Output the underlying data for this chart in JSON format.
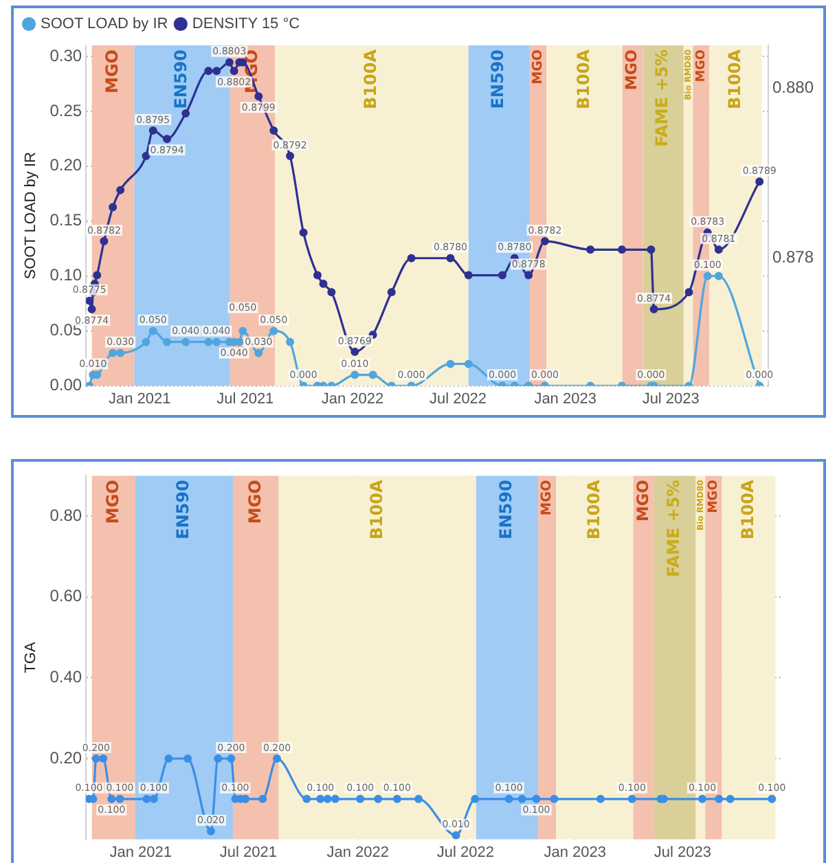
{
  "chart_data": [
    {
      "type": "line",
      "ylabel": "SOOT LOAD by IR",
      "x": [
        "2020-10-07",
        "2020-10-11",
        "2020-10-13",
        "2020-10-16",
        "2020-10-20",
        "2020-11-01",
        "2020-11-16",
        "2020-11-29",
        "2021-01-12",
        "2021-01-24",
        "2021-02-17",
        "2021-03-21",
        "2021-04-29",
        "2021-05-13",
        "2021-06-04",
        "2021-06-12",
        "2021-06-21",
        "2021-06-27",
        "2021-07-24",
        "2021-08-19",
        "2021-09-16",
        "2021-10-09",
        "2021-11-02",
        "2021-11-12",
        "2021-11-26",
        "2022-01-05",
        "2022-02-05",
        "2022-03-09",
        "2022-04-12",
        "2022-06-18",
        "2022-07-19",
        "2022-09-15",
        "2022-10-06",
        "2022-10-30",
        "2022-11-27",
        "2023-02-13",
        "2023-04-08",
        "2023-05-28",
        "2023-06-02",
        "2023-08-01",
        "2023-09-02",
        "2023-09-21",
        "2023-11-30"
      ],
      "xlim": [
        "2020-10-01",
        "2023-12-15"
      ],
      "xticks": [
        {
          "value": "2021-01-01",
          "label": "Jan 2021"
        },
        {
          "value": "2021-07-01",
          "label": "Jul 2021"
        },
        {
          "value": "2022-01-01",
          "label": "Jan 2022"
        },
        {
          "value": "2022-07-01",
          "label": "Jul 2022"
        },
        {
          "value": "2023-01-01",
          "label": "Jan 2023"
        },
        {
          "value": "2023-07-01",
          "label": "Jul 2023"
        }
      ],
      "ylim": [
        0,
        0.31
      ],
      "yticks": [
        {
          "value": 0,
          "label": "0.00"
        },
        {
          "value": 0.05,
          "label": "0.05"
        },
        {
          "value": 0.1,
          "label": "0.10"
        },
        {
          "value": 0.15,
          "label": "0.15"
        },
        {
          "value": 0.2,
          "label": "0.20"
        },
        {
          "value": 0.25,
          "label": "0.25"
        },
        {
          "value": 0.3,
          "label": "0.30"
        }
      ],
      "y2lim": [
        0.8765,
        0.8805
      ],
      "y2ticks": [
        {
          "value": 0.878,
          "label": "0.878"
        },
        {
          "value": 0.88,
          "label": "0.880"
        }
      ],
      "series": [
        {
          "name": "SOOT LOAD by IR",
          "color": "#4fa6de",
          "x": [
            "2020-10-07",
            "2020-10-13",
            "2020-10-20",
            "2020-11-01",
            "2020-11-16",
            "2020-11-29",
            "2021-01-12",
            "2021-01-24",
            "2021-02-17",
            "2021-03-21",
            "2021-04-29",
            "2021-05-13",
            "2021-06-04",
            "2021-06-12",
            "2021-06-21",
            "2021-06-27",
            "2021-07-24",
            "2021-08-19",
            "2021-09-16",
            "2021-10-09",
            "2021-11-02",
            "2021-11-12",
            "2021-11-26",
            "2022-01-05",
            "2022-02-05",
            "2022-03-09",
            "2022-04-12",
            "2022-06-18",
            "2022-07-19",
            "2022-09-15",
            "2022-10-06",
            "2022-10-30",
            "2022-11-27",
            "2023-02-13",
            "2023-04-08",
            "2023-05-28",
            "2023-06-02",
            "2023-08-01",
            "2023-09-02",
            "2023-09-21",
            "2023-11-30"
          ],
          "values": [
            0,
            0.01,
            0.01,
            0.02,
            0.03,
            0.03,
            0.04,
            0.05,
            0.04,
            0.04,
            0.04,
            0.04,
            0.04,
            0.04,
            0.04,
            0.05,
            0.03,
            0.05,
            0.04,
            0,
            0,
            0,
            0,
            0.01,
            0.01,
            0,
            0,
            0.02,
            0.02,
            0,
            0,
            0,
            0,
            0,
            0,
            0,
            0,
            0,
            0.1,
            0.1,
            0
          ],
          "value_labels": [
            null,
            "0.010",
            null,
            null,
            null,
            "0.030",
            null,
            "0.050",
            null,
            "0.040",
            null,
            "0.040",
            null,
            "0.040",
            null,
            "0.050",
            "0.030",
            "0.050",
            null,
            "0.000",
            null,
            null,
            null,
            "0.010",
            null,
            null,
            "0.000",
            null,
            null,
            "0.000",
            null,
            null,
            "0.000",
            null,
            null,
            "0.000",
            null,
            null,
            "0.100",
            null,
            "0.000"
          ]
        },
        {
          "name": "DENSITY 15 °C",
          "color": "#2e3192",
          "axis": "y2",
          "values": [
            0.8775,
            0.8774,
            0.8776,
            0.8777,
            0.8778,
            0.8782,
            0.8786,
            0.8788,
            0.8792,
            0.8795,
            0.8794,
            0.8797,
            0.8802,
            0.8802,
            0.8803,
            0.8802,
            0.8803,
            0.8803,
            0.8799,
            0.8795,
            0.8792,
            0.8783,
            0.8778,
            0.8777,
            0.8776,
            0.8769,
            0.8771,
            0.8776,
            0.878,
            0.878,
            0.8778,
            0.8778,
            0.878,
            0.8778,
            0.8782,
            0.8781,
            0.8781,
            0.8781,
            0.8774,
            0.8776,
            0.8783,
            0.8781,
            0.8789
          ],
          "value_labels": [
            "0.8775",
            "0.8774",
            null,
            null,
            null,
            "0.8782",
            null,
            null,
            null,
            "0.8795",
            "0.8794",
            null,
            null,
            null,
            "0.8803",
            "0.8802",
            null,
            null,
            "0.8799",
            null,
            "0.8792",
            null,
            null,
            null,
            null,
            "0.8769",
            null,
            null,
            null,
            "0.8780",
            null,
            null,
            "0.8780",
            "0.8778",
            "0.8782",
            null,
            null,
            null,
            "0.8774",
            null,
            "0.8783",
            "0.8781",
            "0.8789"
          ]
        }
      ],
      "bands": [
        {
          "axis": "x",
          "from": "2020-10-11",
          "to": "2020-12-23",
          "label": "MGO",
          "color": "#f3c1ad"
        },
        {
          "axis": "x",
          "from": "2020-12-23",
          "to": "2021-06-05",
          "label": "EN590",
          "color": "#9fcbf5"
        },
        {
          "axis": "x",
          "from": "2021-06-05",
          "to": "2021-08-21",
          "label": "MGO",
          "color": "#f3c1ad"
        },
        {
          "axis": "x",
          "from": "2021-08-21",
          "to": "2022-07-19",
          "label": "B100A",
          "color": "#f7f0d3"
        },
        {
          "axis": "x",
          "from": "2022-07-19",
          "to": "2022-10-31",
          "label": "EN590",
          "color": "#9fcbf5"
        },
        {
          "axis": "x",
          "from": "2022-10-31",
          "to": "2022-11-30",
          "label": "MGO",
          "color": "#f3c1ad"
        },
        {
          "axis": "x",
          "from": "2022-11-30",
          "to": "2023-04-09",
          "label": "B100A",
          "color": "#f7f0d3"
        },
        {
          "axis": "x",
          "from": "2023-04-09",
          "to": "2023-05-14",
          "label": "MGO",
          "color": "#f3c1ad"
        },
        {
          "axis": "x",
          "from": "2023-05-14",
          "to": "2023-07-23",
          "label": "FAME +5%",
          "color": "#d9cf98"
        },
        {
          "axis": "x",
          "from": "2023-07-23",
          "to": "2023-08-08",
          "label": "Bio RMD80",
          "color": "#f7f0d3"
        },
        {
          "axis": "x",
          "from": "2023-08-08",
          "to": "2023-09-05",
          "label": "MGO",
          "color": "#f3c1ad"
        },
        {
          "axis": "x",
          "from": "2023-09-05",
          "to": "2023-12-04",
          "label": "B100A",
          "color": "#f7f0d3"
        }
      ],
      "grid": true,
      "legend": "top left",
      "marker": "circle",
      "line_style": "solid"
    },
    {
      "type": "line",
      "ylabel": "TGA",
      "x": [
        "2020-10-06",
        "2020-10-13",
        "2020-10-18",
        "2020-10-30",
        "2020-11-13",
        "2020-11-27",
        "2021-01-11",
        "2021-01-23",
        "2021-02-17",
        "2021-03-21",
        "2021-04-29",
        "2021-05-11",
        "2021-06-02",
        "2021-06-09",
        "2021-06-18",
        "2021-06-26",
        "2021-07-25",
        "2021-08-18",
        "2021-10-07",
        "2021-10-30",
        "2021-11-11",
        "2021-11-24",
        "2022-01-05",
        "2022-02-04",
        "2022-03-08",
        "2022-04-13",
        "2022-06-15",
        "2022-07-17",
        "2022-09-12",
        "2022-10-04",
        "2022-10-28",
        "2022-11-27",
        "2023-02-13",
        "2023-04-07",
        "2023-05-25",
        "2023-05-30",
        "2023-08-03",
        "2023-08-31",
        "2023-09-19",
        "2023-11-28"
      ],
      "xlim": [
        "2020-10-01",
        "2023-12-15"
      ],
      "xticks": [
        {
          "value": "2021-01-01",
          "label": "Jan 2021"
        },
        {
          "value": "2021-07-01",
          "label": "Jul 2021"
        },
        {
          "value": "2022-01-01",
          "label": "Jan 2022"
        },
        {
          "value": "2022-07-01",
          "label": "Jul 2022"
        },
        {
          "value": "2023-01-01",
          "label": "Jan 2023"
        },
        {
          "value": "2023-07-01",
          "label": "Jul 2023"
        }
      ],
      "ylim": [
        0,
        0.9
      ],
      "yticks": [
        {
          "value": 0.2,
          "label": "0.20"
        },
        {
          "value": 0.4,
          "label": "0.40"
        },
        {
          "value": 0.6,
          "label": "0.60"
        },
        {
          "value": 0.8,
          "label": "0.80"
        }
      ],
      "series": [
        {
          "color": "#3a8ee6",
          "values": [
            0.1,
            0.1,
            0.2,
            0.2,
            0.1,
            0.1,
            0.1,
            0.1,
            0.2,
            0.2,
            0.02,
            0.2,
            0.2,
            0.1,
            0.1,
            0.1,
            0.1,
            0.2,
            0.1,
            0.1,
            0.1,
            0.1,
            0.1,
            0.1,
            0.1,
            0.1,
            0.01,
            0.1,
            0.1,
            0.1,
            0.1,
            0.1,
            0.1,
            0.1,
            0.1,
            0.1,
            0.1,
            0.1,
            0.1,
            0.1
          ],
          "value_labels": [
            "0.100",
            null,
            "0.200",
            null,
            "0.100",
            "0.100",
            null,
            "0.100",
            null,
            null,
            "0.020",
            null,
            "0.200",
            "0.100",
            null,
            null,
            null,
            "0.200",
            null,
            "0.100",
            null,
            null,
            "0.100",
            null,
            "0.100",
            null,
            "0.010",
            null,
            "0.100",
            null,
            "0.100",
            null,
            null,
            "0.100",
            null,
            null,
            "0.100",
            null,
            null,
            "0.100"
          ]
        }
      ],
      "bands": [
        {
          "axis": "x",
          "from": "2020-10-11",
          "to": "2020-12-23",
          "label": "MGO",
          "color": "#f3c1ad"
        },
        {
          "axis": "x",
          "from": "2020-12-23",
          "to": "2021-06-05",
          "label": "EN590",
          "color": "#9fcbf5"
        },
        {
          "axis": "x",
          "from": "2021-06-05",
          "to": "2021-08-21",
          "label": "MGO",
          "color": "#f3c1ad"
        },
        {
          "axis": "x",
          "from": "2021-08-21",
          "to": "2022-07-19",
          "label": "B100A",
          "color": "#f7f0d3"
        },
        {
          "axis": "x",
          "from": "2022-07-19",
          "to": "2022-10-31",
          "label": "EN590",
          "color": "#9fcbf5"
        },
        {
          "axis": "x",
          "from": "2022-10-31",
          "to": "2022-11-30",
          "label": "MGO",
          "color": "#f3c1ad"
        },
        {
          "axis": "x",
          "from": "2022-11-30",
          "to": "2023-04-09",
          "label": "B100A",
          "color": "#f7f0d3"
        },
        {
          "axis": "x",
          "from": "2023-04-09",
          "to": "2023-05-14",
          "label": "MGO",
          "color": "#f3c1ad"
        },
        {
          "axis": "x",
          "from": "2023-05-14",
          "to": "2023-07-23",
          "label": "FAME +5%",
          "color": "#d9cf98"
        },
        {
          "axis": "x",
          "from": "2023-07-23",
          "to": "2023-08-08",
          "label": "Bio RMD80",
          "color": "#f7f0d3"
        },
        {
          "axis": "x",
          "from": "2023-08-08",
          "to": "2023-09-05",
          "label": "MGO",
          "color": "#f3c1ad"
        },
        {
          "axis": "x",
          "from": "2023-09-05",
          "to": "2023-12-04",
          "label": "B100A",
          "color": "#f7f0d3"
        }
      ],
      "grid": true,
      "marker": "circle",
      "line_style": "solid"
    }
  ]
}
